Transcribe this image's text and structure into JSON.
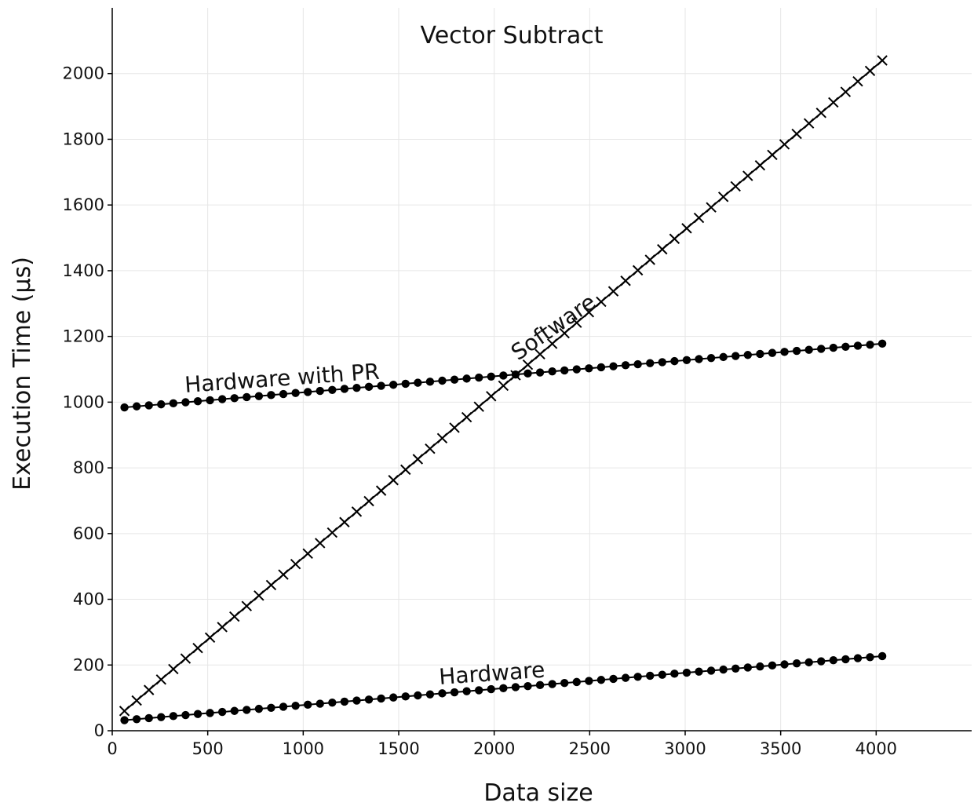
{
  "chart_data": {
    "type": "line",
    "title": "Vector Subtract",
    "xlabel": "Data size",
    "ylabel": "Execution Time (µs)",
    "xlim": [
      0,
      4500
    ],
    "ylim": [
      0,
      2200
    ],
    "xticks": [
      0,
      500,
      1000,
      1500,
      2000,
      2500,
      3000,
      3500,
      4000
    ],
    "yticks": [
      0,
      200,
      400,
      600,
      800,
      1000,
      1200,
      1400,
      1600,
      1800,
      2000
    ],
    "grid": true,
    "legend": "none",
    "x_start": 64,
    "x_step": 64,
    "point_count": 63,
    "series": [
      {
        "name": "Hardware with PR",
        "marker": "circle",
        "y_start": 984,
        "y_end": 1178
      },
      {
        "name": "Software",
        "marker": "x",
        "y_start": 60,
        "y_end": 2040
      },
      {
        "name": "Hardware",
        "marker": "circle",
        "y_start": 32,
        "y_end": 227
      }
    ],
    "annotations": [
      {
        "text": "Hardware with PR",
        "series": "Hardware with PR"
      },
      {
        "text": "Software",
        "series": "Software"
      },
      {
        "text": "Hardware",
        "series": "Hardware"
      }
    ]
  }
}
